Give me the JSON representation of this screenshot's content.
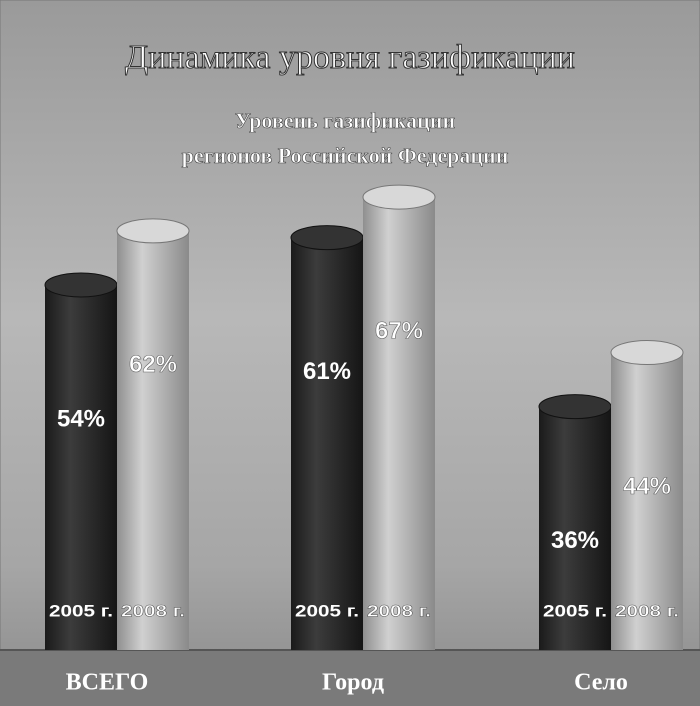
{
  "chart_data": {
    "type": "bar",
    "title": "Динамика уровня газификации",
    "subtitle": [
      "Уровень газификации",
      "регионов Российской Федерации"
    ],
    "categories": [
      "ВСЕГО",
      "Город",
      "Село"
    ],
    "series": [
      {
        "name": "2005 г.",
        "color": "#2b2b2b",
        "values": [
          54,
          61,
          36
        ],
        "value_labels": [
          "54%",
          "61%",
          "36%"
        ]
      },
      {
        "name": "2008 г.",
        "color": "#b4b4b4",
        "values": [
          62,
          67,
          44
        ],
        "value_labels": [
          "62%",
          "67%",
          "44%"
        ]
      }
    ]
  }
}
